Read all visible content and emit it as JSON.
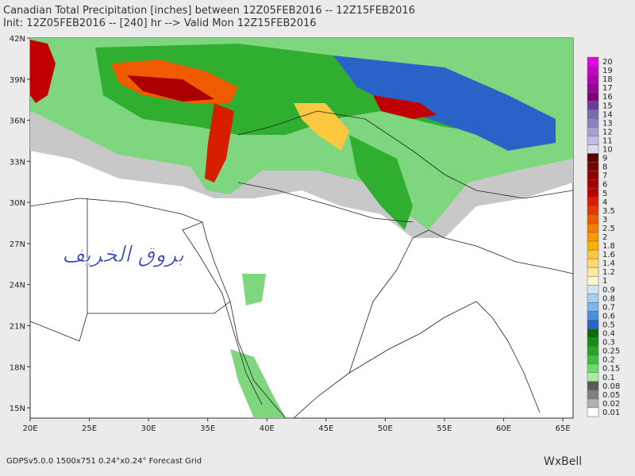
{
  "header": {
    "title": "Canadian Total Precipitation [inches] between 12Z05FEB2016 -- 12Z15FEB2016",
    "subtitle": "Init: 12Z05FEB2016 -- [240] hr --> Valid Mon 12Z15FEB2016"
  },
  "map": {
    "xlim": [
      20,
      65.87
    ],
    "ylim": [
      14.25,
      42
    ],
    "xticks": [
      {
        "value": 20,
        "label": "20E"
      },
      {
        "value": 25,
        "label": "25E"
      },
      {
        "value": 30,
        "label": "30E"
      },
      {
        "value": 35,
        "label": "35E"
      },
      {
        "value": 40,
        "label": "40E"
      },
      {
        "value": 45,
        "label": "45E"
      },
      {
        "value": 50,
        "label": "50E"
      },
      {
        "value": 55,
        "label": "55E"
      },
      {
        "value": 60,
        "label": "60E"
      },
      {
        "value": 65,
        "label": "65E"
      }
    ],
    "yticks": [
      {
        "value": 15,
        "label": "15N"
      },
      {
        "value": 18,
        "label": "18N"
      },
      {
        "value": 21,
        "label": "21N"
      },
      {
        "value": 24,
        "label": "24N"
      },
      {
        "value": 27,
        "label": "27N"
      },
      {
        "value": 30,
        "label": "30N"
      },
      {
        "value": 33,
        "label": "33N"
      },
      {
        "value": 36,
        "label": "36N"
      },
      {
        "value": 39,
        "label": "39N"
      },
      {
        "value": 42,
        "label": "42N"
      }
    ],
    "watermark": "بروق الخريف"
  },
  "colorbar": [
    {
      "value": 20,
      "color": "#e600e6"
    },
    {
      "value": 19,
      "color": "#cc00cc"
    },
    {
      "value": 18,
      "color": "#b300b3"
    },
    {
      "value": 17,
      "color": "#9a009a"
    },
    {
      "value": 16,
      "color": "#800080"
    },
    {
      "value": 15,
      "color": "#6a3d9a"
    },
    {
      "value": 14,
      "color": "#7a6ab0"
    },
    {
      "value": 13,
      "color": "#8c82c0"
    },
    {
      "value": 12,
      "color": "#a89ed0"
    },
    {
      "value": 11,
      "color": "#c4bce0"
    },
    {
      "value": 10,
      "color": "#ddd8ee"
    },
    {
      "value": 9,
      "color": "#5a0000"
    },
    {
      "value": 8,
      "color": "#7a0000"
    },
    {
      "value": 7,
      "color": "#900000"
    },
    {
      "value": 6,
      "color": "#aa0000"
    },
    {
      "value": 5,
      "color": "#c00000"
    },
    {
      "value": 4,
      "color": "#d81e00"
    },
    {
      "value": 3.5,
      "color": "#e83800"
    },
    {
      "value": 3,
      "color": "#f05a00"
    },
    {
      "value": 2.5,
      "color": "#f57c00"
    },
    {
      "value": 2,
      "color": "#f89a00"
    },
    {
      "value": 1.8,
      "color": "#fbb000"
    },
    {
      "value": 1.6,
      "color": "#fcc840"
    },
    {
      "value": 1.4,
      "color": "#fdd870"
    },
    {
      "value": 1.2,
      "color": "#fee9a0"
    },
    {
      "value": 1,
      "color": "#fff6c8"
    },
    {
      "value": 0.9,
      "color": "#cde6f5"
    },
    {
      "value": 0.8,
      "color": "#a6cff0"
    },
    {
      "value": 0.7,
      "color": "#7db5e8"
    },
    {
      "value": 0.6,
      "color": "#4f8fdc"
    },
    {
      "value": 0.5,
      "color": "#2a63c8"
    },
    {
      "value": 0.4,
      "color": "#0c6b0c"
    },
    {
      "value": 0.3,
      "color": "#168c16"
    },
    {
      "value": 0.25,
      "color": "#24a824"
    },
    {
      "value": 0.2,
      "color": "#40c040"
    },
    {
      "value": 0.15,
      "color": "#70d870"
    },
    {
      "value": 0.1,
      "color": "#a8eca0"
    },
    {
      "value": 0.08,
      "color": "#5a5a5a"
    },
    {
      "value": 0.05,
      "color": "#808080"
    },
    {
      "value": 0.02,
      "color": "#b0b0b0"
    },
    {
      "value": 0.01,
      "color": "#ffffff"
    }
  ],
  "footer": {
    "model": "GDPSv5.0.0  1500x751  0.24°x0.24°  Forecast Grid",
    "logo": "WxBell"
  }
}
